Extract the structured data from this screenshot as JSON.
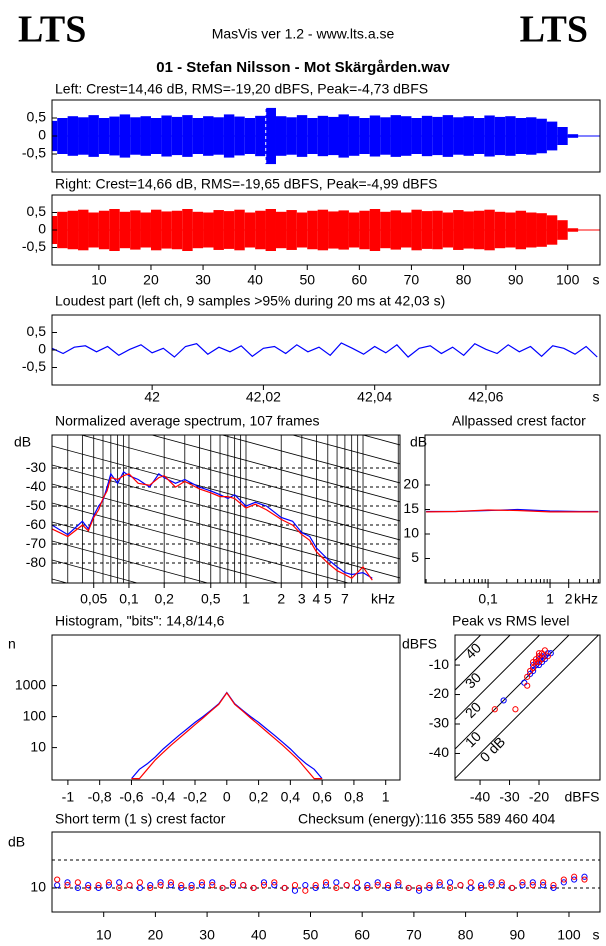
{
  "header": {
    "logo_left": "LTS",
    "logo_right": "LTS",
    "app": "MasVis ver 1.2 - www.lts.a.se",
    "file": "01 - Stefan Nilsson - Mot Skärgården.wav"
  },
  "chart_data": [
    {
      "type": "waveform",
      "title": "Left: Crest=14,46 dB, RMS=-19,20 dBFS, Peak=-4,73 dBFS",
      "xlim": [
        1,
        106.2
      ],
      "ylim": [
        -1,
        1
      ],
      "yticks": [
        {
          "value": 0.5,
          "label": "0,5"
        },
        0,
        {
          "value": -0.5,
          "label": "-0,5"
        }
      ],
      "marker_x": 42.03,
      "x": [
        1,
        3,
        5,
        7,
        9,
        11,
        13,
        15,
        17,
        19,
        21,
        23,
        25,
        27,
        29,
        31,
        33,
        35,
        37,
        39,
        41,
        43,
        45,
        47,
        49,
        51,
        53,
        55,
        57,
        59,
        61,
        63,
        65,
        67,
        69,
        71,
        73,
        75,
        77,
        79,
        81,
        83,
        85,
        87,
        89,
        91,
        93,
        95,
        97,
        99,
        101
      ],
      "series": [
        {
          "color": "#0000ff",
          "values": [
            0.42,
            0.5,
            0.55,
            0.52,
            0.58,
            0.5,
            0.54,
            0.6,
            0.52,
            0.55,
            0.5,
            0.57,
            0.53,
            0.58,
            0.5,
            0.55,
            0.52,
            0.6,
            0.54,
            0.5,
            0.56,
            0.78,
            0.55,
            0.52,
            0.58,
            0.5,
            0.56,
            0.53,
            0.6,
            0.55,
            0.5,
            0.57,
            0.52,
            0.58,
            0.55,
            0.5,
            0.56,
            0.53,
            0.58,
            0.52,
            0.55,
            0.5,
            0.57,
            0.53,
            0.55,
            0.5,
            0.52,
            0.48,
            0.4,
            0.25,
            0.05
          ]
        }
      ]
    },
    {
      "type": "waveform",
      "title": "Right: Crest=14,66 dB, RMS=-19,65 dBFS, Peak=-4,99 dBFS",
      "xlim": [
        1,
        106.2
      ],
      "ylim": [
        -1,
        1
      ],
      "yticks": [
        {
          "value": 0.5,
          "label": "0,5"
        },
        0,
        {
          "value": -0.5,
          "label": "-0,5"
        }
      ],
      "xticks": [
        10,
        20,
        30,
        40,
        50,
        60,
        70,
        80,
        90,
        100
      ],
      "x_unit": "s",
      "x": [
        1,
        3,
        5,
        7,
        9,
        11,
        13,
        15,
        17,
        19,
        21,
        23,
        25,
        27,
        29,
        31,
        33,
        35,
        37,
        39,
        41,
        43,
        45,
        47,
        49,
        51,
        53,
        55,
        57,
        59,
        61,
        63,
        65,
        67,
        69,
        71,
        73,
        75,
        77,
        79,
        81,
        83,
        85,
        87,
        89,
        91,
        93,
        95,
        97,
        99,
        101
      ],
      "series": [
        {
          "color": "#ff0000",
          "values": [
            0.4,
            0.52,
            0.55,
            0.58,
            0.5,
            0.55,
            0.6,
            0.52,
            0.56,
            0.5,
            0.58,
            0.53,
            0.55,
            0.6,
            0.52,
            0.5,
            0.57,
            0.54,
            0.58,
            0.5,
            0.55,
            0.6,
            0.52,
            0.57,
            0.5,
            0.55,
            0.58,
            0.53,
            0.56,
            0.5,
            0.55,
            0.6,
            0.52,
            0.56,
            0.5,
            0.58,
            0.54,
            0.55,
            0.5,
            0.57,
            0.53,
            0.55,
            0.58,
            0.52,
            0.5,
            0.55,
            0.5,
            0.48,
            0.42,
            0.28,
            0.05
          ]
        }
      ]
    },
    {
      "type": "line",
      "title": "Loudest part (left  ch, 9 samples >95% during 20 ms at 42,03 s)",
      "xlim": [
        41.982,
        42.0805
      ],
      "ylim": [
        -1,
        1
      ],
      "yticks": [
        {
          "value": 0.5,
          "label": "0,5"
        },
        0,
        {
          "value": -0.5,
          "label": "-0,5"
        }
      ],
      "xticks": [
        42,
        {
          "value": 42.02,
          "label": "42,02"
        },
        {
          "value": 42.04,
          "label": "42,04"
        },
        {
          "value": 42.06,
          "label": "42,06"
        }
      ],
      "x_unit": "s",
      "x": [
        41.982,
        41.984,
        41.986,
        41.988,
        41.99,
        41.992,
        41.994,
        41.996,
        41.998,
        42,
        42.002,
        42.004,
        42.006,
        42.008,
        42.01,
        42.012,
        42.014,
        42.016,
        42.018,
        42.02,
        42.022,
        42.024,
        42.026,
        42.028,
        42.03,
        42.032,
        42.034,
        42.036,
        42.038,
        42.04,
        42.042,
        42.044,
        42.046,
        42.048,
        42.05,
        42.052,
        42.054,
        42.056,
        42.058,
        42.06,
        42.062,
        42.064,
        42.066,
        42.068,
        42.07,
        42.072,
        42.074,
        42.076,
        42.078,
        42.08
      ],
      "series": [
        {
          "color": "#0000ff",
          "values": [
            0.05,
            -0.1,
            0.08,
            0.12,
            -0.05,
            0.1,
            -0.15,
            0.02,
            0.15,
            -0.08,
            0.05,
            -0.2,
            0.1,
            0.18,
            -0.12,
            0.08,
            -0.05,
            0.12,
            -0.18,
            0.05,
            0.1,
            -0.1,
            0.15,
            -0.05,
            0.08,
            -0.15,
            0.2,
            0.05,
            -0.12,
            0.1,
            -0.08,
            0.15,
            -0.2,
            0.05,
            0.12,
            -0.1,
            0.08,
            -0.15,
            0.18,
            0.02,
            -0.1,
            0.15,
            -0.05,
            0.1,
            -0.18,
            0.12,
            0.05,
            -0.12,
            0.1,
            -0.2
          ]
        }
      ]
    },
    {
      "type": "line",
      "title": "Normalized average spectrum, 107 frames",
      "y_unit": "dB",
      "x_unit": "kHz",
      "xlog": true,
      "grid": true,
      "xlim": [
        0.022,
        20.7
      ],
      "ylim": [
        -90.5,
        -12.6
      ],
      "yticks": [
        -30,
        -40,
        -50,
        -60,
        -70,
        -80
      ],
      "xticks": [
        {
          "value": 0.05,
          "label": "0,05"
        },
        {
          "value": 0.1,
          "label": "0,1"
        },
        {
          "value": 0.2,
          "label": "0,2"
        },
        {
          "value": 0.5,
          "label": "0,5"
        },
        1,
        2,
        3,
        4,
        5,
        7
      ],
      "x": [
        0.022,
        0.03,
        0.04,
        0.045,
        0.05,
        0.055,
        0.06,
        0.065,
        0.07,
        0.08,
        0.09,
        0.1,
        0.12,
        0.15,
        0.18,
        0.2,
        0.25,
        0.3,
        0.4,
        0.5,
        0.6,
        0.7,
        0.8,
        1,
        1.2,
        1.5,
        2,
        2.5,
        3,
        3.5,
        4,
        5,
        6,
        7,
        8,
        10,
        12
      ],
      "series": [
        {
          "color": "#0000ff",
          "values": [
            -60,
            -65,
            -58,
            -62,
            -55,
            -50,
            -47,
            -40,
            -33,
            -38,
            -32,
            -34,
            -36,
            -40,
            -33,
            -35,
            -38,
            -36,
            -40,
            -42,
            -44,
            -46,
            -44,
            -50,
            -48,
            -50,
            -56,
            -58,
            -64,
            -66,
            -72,
            -78,
            -82,
            -85,
            -86,
            -85,
            -88
          ]
        },
        {
          "color": "#ff0000",
          "values": [
            -62,
            -66,
            -60,
            -63,
            -56,
            -52,
            -46,
            -42,
            -35,
            -36,
            -34,
            -33,
            -38,
            -39,
            -35,
            -34,
            -40,
            -37,
            -41,
            -43,
            -45,
            -45,
            -46,
            -51,
            -49,
            -52,
            -57,
            -60,
            -65,
            -68,
            -74,
            -80,
            -84,
            -86,
            -88,
            -82,
            -89
          ]
        }
      ]
    },
    {
      "type": "line",
      "title": "Allpassed crest factor",
      "y_unit": "dB",
      "x_unit": "kHz",
      "xlog": true,
      "xlim": [
        0.0096,
        6.4
      ],
      "ylim": [
        0,
        30.2
      ],
      "yticks": [
        20,
        15,
        10,
        5
      ],
      "xticks": [
        {
          "value": 0.1,
          "label": "0,1"
        },
        1,
        2
      ],
      "x": [
        0.01,
        0.03,
        0.1,
        0.3,
        1,
        3,
        6
      ],
      "series": [
        {
          "color": "#0000ff",
          "values": [
            14.6,
            14.6,
            14.8,
            15,
            14.7,
            14.6,
            14.6
          ]
        },
        {
          "color": "#ff0000",
          "values": [
            14.5,
            14.6,
            14.9,
            14.8,
            14.5,
            14.5,
            14.5
          ]
        }
      ]
    },
    {
      "type": "line",
      "title": "Histogram, \"bits\": 14,8/14,6",
      "y_unit": "n",
      "ylog": true,
      "xlim": [
        -1.1,
        1.09
      ],
      "ylim": [
        0.9,
        43000
      ],
      "yticks": [
        1000,
        100,
        10
      ],
      "xticks": [
        -1,
        {
          "value": -0.8,
          "label": "-0,8"
        },
        {
          "value": -0.6,
          "label": "-0,6"
        },
        {
          "value": -0.4,
          "label": "-0,4"
        },
        {
          "value": -0.2,
          "label": "-0,2"
        },
        0,
        {
          "value": 0.2,
          "label": "0,2"
        },
        {
          "value": 0.4,
          "label": "0,4"
        },
        {
          "value": 0.6,
          "label": "0,6"
        },
        {
          "value": 0.8,
          "label": "0,8"
        },
        1
      ],
      "x": [
        -0.6,
        -0.55,
        -0.5,
        -0.45,
        -0.4,
        -0.35,
        -0.3,
        -0.25,
        -0.2,
        -0.15,
        -0.1,
        -0.05,
        0,
        0.05,
        0.1,
        0.15,
        0.2,
        0.25,
        0.3,
        0.35,
        0.4,
        0.45,
        0.5,
        0.55,
        0.6
      ],
      "series": [
        {
          "color": "#0000ff",
          "values": [
            1,
            2,
            3,
            5,
            9,
            15,
            25,
            40,
            65,
            100,
            160,
            260,
            600,
            260,
            160,
            100,
            65,
            40,
            25,
            15,
            9,
            5,
            3,
            2,
            1
          ]
        },
        {
          "color": "#ff0000",
          "values": [
            1,
            1,
            2,
            4,
            7,
            12,
            20,
            33,
            55,
            90,
            150,
            250,
            580,
            250,
            150,
            90,
            55,
            33,
            20,
            12,
            7,
            4,
            2,
            1,
            1
          ]
        }
      ]
    },
    {
      "type": "scatter",
      "title": "Peak vs RMS level",
      "y_unit": "dBFS",
      "x_unit": "dBFS",
      "xlim": [
        -48.5,
        0.7
      ],
      "ylim": [
        -49,
        0.2
      ],
      "yticks": [
        -10,
        -20,
        -30,
        -40
      ],
      "xticks": [
        -40,
        -30,
        -20
      ],
      "crest_lines": [
        40,
        30,
        20,
        10,
        {
          "value": 0,
          "label": "0 dB"
        }
      ],
      "series": [
        {
          "color": "#0000ff",
          "x": [
            -32,
            -25,
            -22,
            -21,
            -20,
            -19,
            -18,
            -17,
            -21,
            -20,
            -19,
            -22,
            -23,
            -18,
            -20,
            -16
          ],
          "values": [
            -22,
            -16,
            -12,
            -10,
            -8,
            -7,
            -7,
            -6,
            -9,
            -10,
            -9,
            -10,
            -13,
            -8,
            -7,
            -6
          ]
        },
        {
          "color": "#ff0000",
          "x": [
            -35,
            -28,
            -24,
            -21,
            -20,
            -19,
            -18,
            -22,
            -20,
            -19,
            -21,
            -23,
            -17,
            -20,
            -22,
            -24
          ],
          "values": [
            -25,
            -25,
            -14,
            -9,
            -7,
            -6,
            -5,
            -11,
            -9,
            -8,
            -8,
            -12,
            -7,
            -6,
            -9,
            -17
          ]
        }
      ]
    },
    {
      "type": "scatter",
      "title": "Short term (1 s) crest factor",
      "checksum_label": "Checksum (energy):",
      "checksum": "116 355 589 460 404",
      "y_unit": "dB",
      "x_unit": "s",
      "xlim": [
        0,
        106
      ],
      "ylim": [
        1.4,
        30
      ],
      "yticks": [
        10
      ],
      "grid": [
        10,
        20
      ],
      "xticks": [
        10,
        20,
        30,
        40,
        50,
        60,
        70,
        80,
        90,
        100
      ],
      "x": [
        1,
        3,
        5,
        7,
        9,
        11,
        13,
        15,
        17,
        19,
        21,
        23,
        25,
        27,
        29,
        31,
        33,
        35,
        37,
        39,
        41,
        43,
        45,
        47,
        49,
        51,
        53,
        55,
        57,
        59,
        61,
        63,
        65,
        67,
        69,
        71,
        73,
        75,
        77,
        79,
        81,
        83,
        85,
        87,
        89,
        91,
        93,
        95,
        97,
        99,
        101,
        103
      ],
      "series": [
        {
          "color": "#0000ff",
          "values": [
            11,
            12,
            10,
            11,
            10,
            11,
            12,
            11,
            10,
            11,
            12,
            11,
            10,
            11,
            11,
            12,
            10,
            11,
            11,
            10,
            12,
            11,
            10,
            9,
            11,
            10,
            11,
            12,
            11,
            10,
            11,
            12,
            10,
            11,
            10,
            9,
            10,
            11,
            12,
            11,
            10,
            11,
            12,
            11,
            10,
            11,
            12,
            11,
            10,
            12,
            13,
            14
          ]
        },
        {
          "color": "#ff0000",
          "values": [
            13,
            11,
            12,
            10,
            11,
            12,
            10,
            11,
            12,
            10,
            11,
            12,
            11,
            10,
            12,
            11,
            10,
            12,
            11,
            10,
            11,
            12,
            10,
            11,
            9,
            11,
            12,
            10,
            11,
            12,
            10,
            11,
            11,
            12,
            10,
            10,
            11,
            12,
            10,
            11,
            12,
            10,
            11,
            12,
            10,
            12,
            11,
            12,
            11,
            13,
            14,
            13
          ]
        }
      ]
    }
  ]
}
